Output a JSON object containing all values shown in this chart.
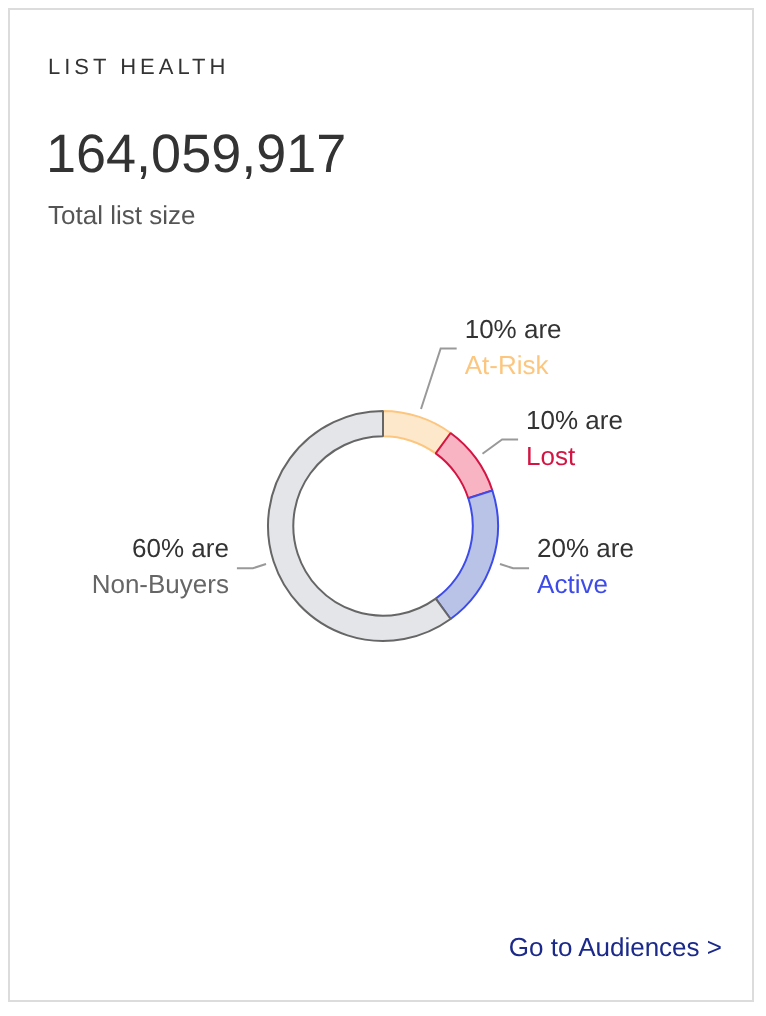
{
  "chart_data": {
    "type": "donut",
    "title": "LIST HEALTH",
    "subtitle": "164,059,917",
    "annotations": [
      "Total list size",
      "Go to Audiences >"
    ],
    "categories": [
      "At-Risk",
      "Lost",
      "Active",
      "Non-Buyers"
    ],
    "values": [
      10,
      10,
      20,
      60
    ],
    "value_labels": [
      "10% are",
      "10% are",
      "20% are",
      "60% are"
    ],
    "colors": [
      "#fde8cc",
      "#f9b4c4",
      "#b9c3e8",
      "#e4e5e8"
    ],
    "legend": false
  }
}
